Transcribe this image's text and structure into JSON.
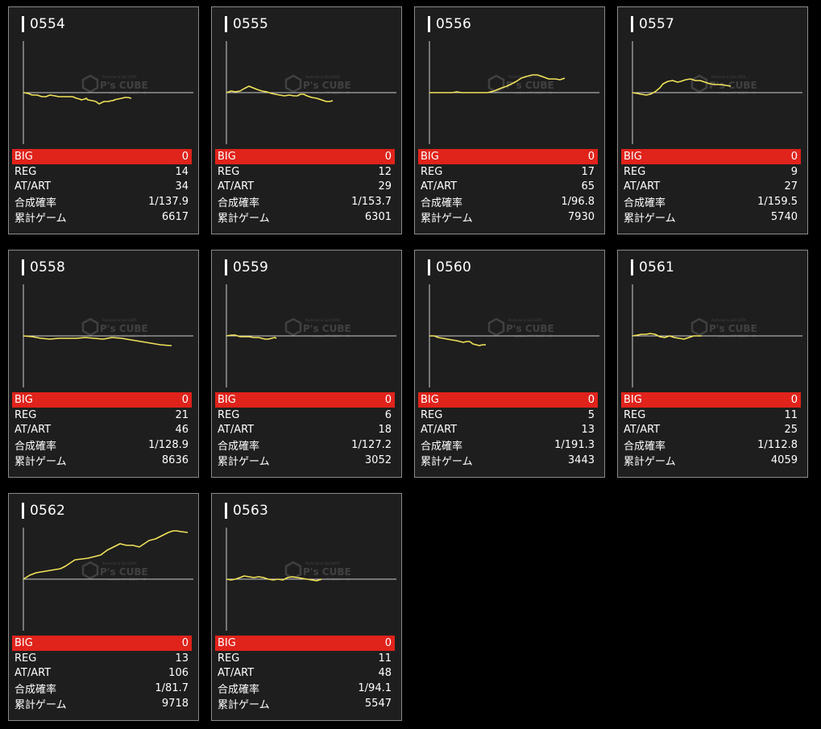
{
  "labels": {
    "big": "BIG",
    "reg": "REG",
    "atart": "AT/ART",
    "prob": "合成確率",
    "games": "累計ゲーム"
  },
  "watermark": {
    "brand": "P's CUBE",
    "top": "Pachislot & Slot DATA",
    "bottom": "online パチスロデータ"
  },
  "colors": {
    "line": "#f2e35a",
    "big_bg": "#e0231b",
    "card_bg": "#1e1e1e",
    "border": "#8a8a8a"
  },
  "machines": [
    {
      "id": "0554",
      "big": "0",
      "reg": "14",
      "atart": "34",
      "prob": "1/137.9",
      "games": "6617",
      "chart_data": {
        "type": "line",
        "x": [
          0,
          6,
          11,
          17,
          23,
          28,
          33,
          39,
          44,
          50,
          55,
          61,
          66,
          70,
          72,
          76,
          78,
          80,
          86,
          90,
          94,
          100,
          106,
          109,
          111,
          113,
          117,
          122,
          126,
          130,
          134
        ],
        "y": [
          0,
          -1,
          -3,
          -3,
          -5,
          -5,
          -3,
          -4,
          -5,
          -5,
          -5,
          -5,
          -7,
          -8,
          -9,
          -8,
          -7,
          -9,
          -10,
          -11,
          -14,
          -11,
          -11,
          -10,
          -10,
          -9,
          -8,
          -7,
          -6,
          -6,
          -7
        ]
      }
    },
    {
      "id": "0555",
      "big": "0",
      "reg": "12",
      "atart": "29",
      "prob": "1/153.7",
      "games": "6301",
      "chart_data": {
        "type": "line",
        "x": [
          0,
          6,
          11,
          17,
          22,
          28,
          33,
          38,
          44,
          50,
          56,
          61,
          66,
          72,
          78,
          84,
          88,
          92,
          96,
          100,
          106,
          112,
          118,
          124,
          128,
          132
        ],
        "y": [
          0,
          2,
          1,
          2,
          5,
          8,
          6,
          4,
          2,
          1,
          -1,
          -2,
          -3,
          -4,
          -3,
          -4,
          -4,
          -2,
          -2,
          -4,
          -6,
          -7,
          -9,
          -11,
          -11,
          -10
        ]
      }
    },
    {
      "id": "0556",
      "big": "0",
      "reg": "17",
      "atart": "65",
      "prob": "1/96.8",
      "games": "7930",
      "chart_data": {
        "type": "line",
        "x": [
          0,
          10,
          20,
          28,
          34,
          40,
          50,
          60,
          68,
          72,
          80,
          90,
          96,
          100,
          104,
          108,
          114,
          120,
          128,
          134,
          140,
          148,
          156,
          162,
          168
        ],
        "y": [
          0,
          0,
          0,
          0,
          1,
          0,
          0,
          0,
          0,
          0,
          2,
          6,
          8,
          10,
          12,
          14,
          18,
          20,
          22,
          22,
          20,
          17,
          17,
          16,
          18
        ]
      }
    },
    {
      "id": "0557",
      "big": "0",
      "reg": "9",
      "atart": "27",
      "prob": "1/159.5",
      "games": "5740",
      "chart_data": {
        "type": "line",
        "x": [
          0,
          6,
          11,
          17,
          22,
          28,
          34,
          38,
          44,
          50,
          56,
          60,
          66,
          72,
          78,
          84,
          90,
          96,
          104,
          110,
          116,
          122
        ],
        "y": [
          0,
          -1,
          -2,
          -3,
          -2,
          1,
          6,
          11,
          14,
          15,
          13,
          14,
          16,
          17,
          15,
          15,
          13,
          11,
          10,
          10,
          9,
          8
        ]
      }
    },
    {
      "id": "0558",
      "big": "0",
      "reg": "21",
      "atart": "46",
      "prob": "1/128.9",
      "games": "8636",
      "chart_data": {
        "type": "line",
        "x": [
          0,
          11,
          22,
          33,
          44,
          55,
          66,
          77,
          88,
          99,
          110,
          122,
          134,
          146,
          158,
          170,
          182,
          184
        ],
        "y": [
          0,
          -1,
          -3,
          -4,
          -3,
          -3,
          -3,
          -2,
          -3,
          -4,
          -2,
          -3,
          -5,
          -7,
          -9,
          -11,
          -12,
          -12
        ]
      }
    },
    {
      "id": "0559",
      "big": "0",
      "reg": "6",
      "atart": "18",
      "prob": "1/127.2",
      "games": "3052",
      "chart_data": {
        "type": "line",
        "x": [
          0,
          6,
          11,
          17,
          22,
          28,
          34,
          40,
          44,
          48,
          52,
          56,
          60,
          62
        ],
        "y": [
          0,
          1,
          1,
          -1,
          -1,
          -1,
          -2,
          -2,
          -3,
          -4,
          -4,
          -3,
          -2,
          -3
        ]
      }
    },
    {
      "id": "0560",
      "big": "0",
      "reg": "5",
      "atart": "13",
      "prob": "1/191.3",
      "games": "3443",
      "chart_data": {
        "type": "line",
        "x": [
          0,
          6,
          11,
          17,
          22,
          28,
          34,
          38,
          42,
          46,
          50,
          54,
          58,
          62,
          66,
          70
        ],
        "y": [
          0,
          0,
          -2,
          -3,
          -4,
          -5,
          -6,
          -7,
          -8,
          -7,
          -7,
          -10,
          -11,
          -12,
          -11,
          -11
        ]
      }
    },
    {
      "id": "0561",
      "big": "0",
      "reg": "11",
      "atart": "25",
      "prob": "1/112.8",
      "games": "4059",
      "chart_data": {
        "type": "line",
        "x": [
          0,
          6,
          11,
          17,
          22,
          28,
          34,
          40,
          46,
          52,
          58,
          64,
          70,
          76,
          82,
          86
        ],
        "y": [
          0,
          1,
          2,
          2,
          3,
          2,
          -1,
          -2,
          0,
          -2,
          -3,
          -4,
          -2,
          0,
          0,
          0
        ]
      }
    },
    {
      "id": "0562",
      "big": "0",
      "reg": "13",
      "atart": "106",
      "prob": "1/81.7",
      "games": "9718",
      "chart_data": {
        "type": "line",
        "x": [
          0,
          8,
          16,
          22,
          28,
          34,
          40,
          46,
          52,
          58,
          64,
          72,
          80,
          88,
          96,
          104,
          112,
          120,
          128,
          136,
          144,
          150,
          156,
          164,
          172,
          180,
          186,
          190,
          196,
          204
        ],
        "y": [
          0,
          5,
          8,
          9,
          10,
          11,
          12,
          13,
          16,
          20,
          24,
          25,
          26,
          28,
          30,
          36,
          40,
          44,
          42,
          42,
          40,
          44,
          48,
          50,
          54,
          58,
          60,
          60,
          59,
          58
        ]
      }
    },
    {
      "id": "0563",
      "big": "0",
      "reg": "11",
      "atart": "48",
      "prob": "1/94.1",
      "games": "5547",
      "chart_data": {
        "type": "line",
        "x": [
          0,
          6,
          11,
          17,
          22,
          28,
          34,
          40,
          46,
          52,
          58,
          64,
          70,
          76,
          82,
          88,
          94,
          100,
          106,
          112,
          118
        ],
        "y": [
          0,
          -1,
          0,
          2,
          4,
          3,
          2,
          3,
          2,
          0,
          -1,
          0,
          -1,
          2,
          3,
          2,
          1,
          0,
          -1,
          -2,
          0
        ]
      }
    }
  ]
}
